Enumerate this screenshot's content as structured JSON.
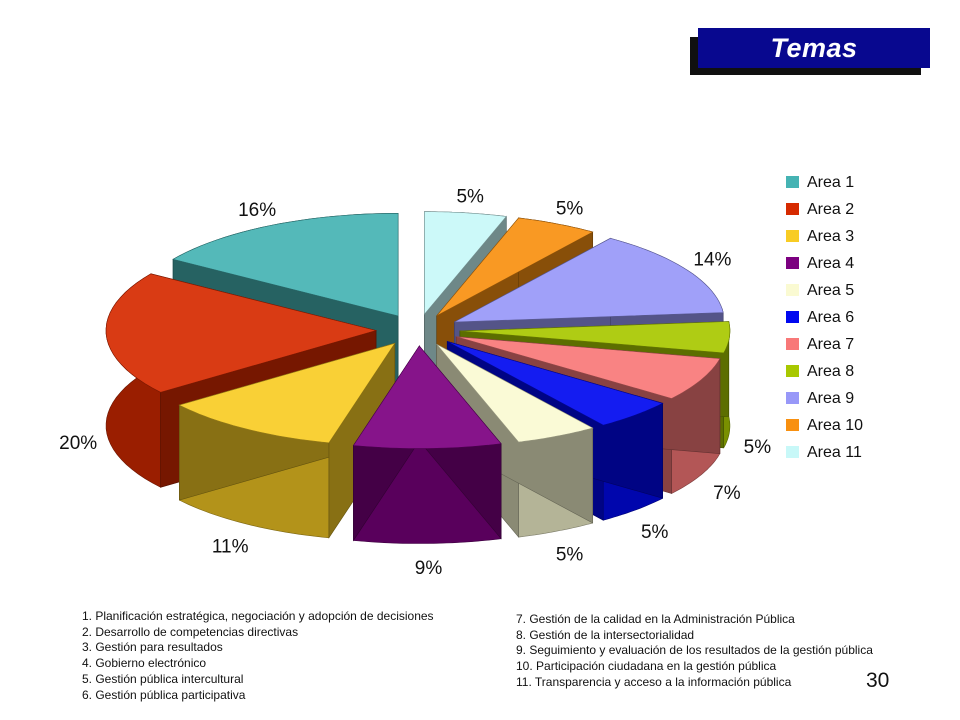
{
  "title": "Temas",
  "page_number": "30",
  "chart_data": {
    "type": "pie",
    "title": "",
    "categories": [
      "Area 1",
      "Area 2",
      "Area 3",
      "Area 4",
      "Area 5",
      "Area 6",
      "Area 7",
      "Area 8",
      "Area 9",
      "Area 10",
      "Area 11"
    ],
    "values": [
      16,
      20,
      11,
      9,
      5,
      5,
      7,
      5,
      14,
      5,
      5
    ],
    "labels": [
      "16%",
      "20%",
      "11%",
      "9%",
      "5%",
      "5%",
      "7%",
      "5%",
      "14%",
      "5%",
      "5%"
    ],
    "colors": [
      "#45b3b3",
      "#d62a00",
      "#f8cc24",
      "#7c0080",
      "#fafad2",
      "#0008f0",
      "#f87878",
      "#a8c800",
      "#9898f8",
      "#f89010",
      "#c8f8f8"
    ],
    "legend_position": "right",
    "style": "exploded 3d pie"
  },
  "notes_left": [
    "1. Planificación estratégica, negociación y adopción de decisiones",
    "2. Desarrollo de competencias directivas",
    "3. Gestión para resultados",
    "4. Gobierno electrónico",
    "5. Gestión pública intercultural",
    "6. Gestión pública participativa"
  ],
  "notes_right": [
    "7. Gestión de la calidad en la Administración Pública",
    "8. Gestión de la intersectorialidad",
    "9. Seguimiento y evaluación de los resultados de la gestión pública",
    "10.  Participación ciudadana en la gestión pública",
    "11. Transparencia  y acceso a la información pública"
  ]
}
